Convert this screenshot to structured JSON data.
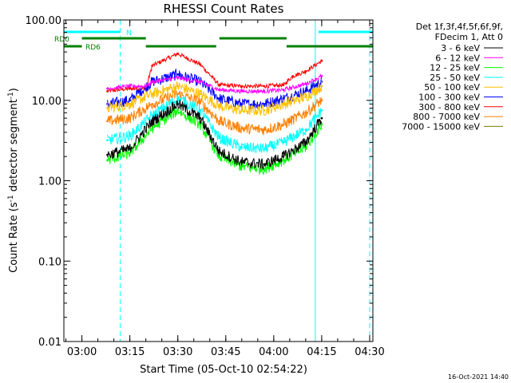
{
  "chart_data": {
    "type": "line",
    "title": "RHESSI Count Rates",
    "xlabel": "Start Time (05-Oct-10 02:54:22)",
    "ylabel": "Count Rate (s⁻¹ detector segment⁻¹)",
    "ylabel_parts": [
      "Count Rate (s",
      "-1",
      " detector segment",
      "-1",
      ")"
    ],
    "y_scale": "log",
    "ylim": [
      0.01,
      100
    ],
    "xlim": [
      "02:54:22",
      "04:31:00"
    ],
    "x_ticks": [
      "03:00",
      "03:15",
      "03:30",
      "03:45",
      "04:00",
      "04:15",
      "04:30"
    ],
    "y_ticks": [
      "0.01",
      "0.10",
      "1.00",
      "10.00",
      "100.00"
    ],
    "legend_header": [
      "Det 1f,3f,4f,5f,6f,9f,",
      "FDecim 1, Att 0"
    ],
    "series": [
      {
        "name": "3 - 6 keV",
        "color": "#000000",
        "x": [
          "03:08",
          "03:15",
          "03:22",
          "03:30",
          "03:37",
          "03:43",
          "03:50",
          "03:57",
          "04:03",
          "04:10",
          "04:15"
        ],
        "values": [
          2.1,
          2.5,
          5.5,
          9.0,
          6.0,
          2.3,
          1.7,
          1.6,
          2.0,
          3.0,
          6.0
        ]
      },
      {
        "name": "6 - 12 keV",
        "color": "#ff00ff",
        "x": [
          "03:08",
          "03:15",
          "03:20",
          "03:22",
          "03:30",
          "03:37",
          "03:43",
          "03:50",
          "03:57",
          "04:03",
          "04:10",
          "04:15"
        ],
        "values": [
          14,
          15,
          15,
          17,
          19,
          17,
          13.5,
          13,
          13,
          13.5,
          16,
          20
        ]
      },
      {
        "name": "12 - 25 keV",
        "color": "#00ff00",
        "x": [
          "03:08",
          "03:15",
          "03:22",
          "03:30",
          "03:37",
          "03:43",
          "03:50",
          "03:57",
          "04:03",
          "04:10",
          "04:15"
        ],
        "values": [
          1.8,
          2.2,
          4.5,
          7.5,
          5.0,
          2.0,
          1.5,
          1.4,
          1.8,
          2.6,
          5.0
        ]
      },
      {
        "name": "25 - 50 keV",
        "color": "#00ffff",
        "x": [
          "03:08",
          "03:15",
          "03:22",
          "03:30",
          "03:37",
          "03:43",
          "03:50",
          "03:57",
          "04:03",
          "04:10",
          "04:15"
        ],
        "values": [
          3.2,
          3.6,
          6.5,
          10.5,
          7.5,
          3.4,
          2.6,
          2.5,
          3.0,
          4.3,
          7.5
        ]
      },
      {
        "name": "50 - 100 keV",
        "color": "#ffc000",
        "x": [
          "03:08",
          "03:15",
          "03:22",
          "03:30",
          "03:37",
          "03:43",
          "03:50",
          "03:57",
          "04:03",
          "04:10",
          "04:15"
        ],
        "values": [
          8,
          9,
          12,
          15,
          12,
          8.5,
          7.5,
          7.5,
          9,
          11,
          15
        ]
      },
      {
        "name": "100 - 300 keV",
        "color": "#0000ff",
        "x": [
          "03:08",
          "03:15",
          "03:22",
          "03:30",
          "03:37",
          "03:43",
          "03:50",
          "03:57",
          "04:03",
          "04:10",
          "04:15"
        ],
        "values": [
          9,
          10,
          17,
          21,
          17,
          10.5,
          9,
          9,
          10.5,
          13,
          17
        ]
      },
      {
        "name": "300 - 800 keV",
        "color": "#ff0000",
        "x": [
          "03:08",
          "03:15",
          "03:20",
          "03:22",
          "03:30",
          "03:37",
          "03:43",
          "03:50",
          "03:57",
          "04:03",
          "04:06",
          "04:10",
          "04:15"
        ],
        "values": [
          13,
          14,
          14,
          27,
          38,
          28,
          15.5,
          15,
          15,
          15.5,
          20,
          23,
          31
        ]
      },
      {
        "name": "800 - 7000 keV",
        "color": "#ff8000",
        "x": [
          "03:08",
          "03:15",
          "03:22",
          "03:30",
          "03:37",
          "03:43",
          "03:50",
          "03:57",
          "04:03",
          "04:10",
          "04:15"
        ],
        "values": [
          5.5,
          6,
          9,
          12,
          9.5,
          5.5,
          4.5,
          4.3,
          5,
          7,
          10
        ]
      },
      {
        "name": "7000 - 15000 keV",
        "color": "#808000",
        "x": [],
        "values": []
      }
    ],
    "flags": [
      {
        "name": "N",
        "color": "#00ffff",
        "spans": [
          [
            "02:54",
            "03:12"
          ],
          [
            "04:14",
            "04:31"
          ]
        ]
      },
      {
        "name": "RD0",
        "color": "#008000",
        "spans": [
          [
            "03:00",
            "03:20"
          ],
          [
            "03:43",
            "04:04"
          ]
        ]
      },
      {
        "name": "RD6",
        "color": "#008000",
        "spans": [
          [
            "02:54",
            "03:00"
          ],
          [
            "03:20",
            "03:42"
          ],
          [
            "04:04",
            "04:31"
          ]
        ]
      }
    ],
    "vlines": [
      {
        "x": "02:54:22",
        "color": "#00ffff",
        "style": "solid"
      },
      {
        "x": "03:12",
        "color": "#00ffff",
        "style": "dashed"
      },
      {
        "x": "04:13",
        "color": "#00ffff",
        "style": "solid"
      },
      {
        "x": "04:30",
        "color": "#00ffff",
        "style": "dashed"
      }
    ],
    "grid": false,
    "legend_position": "right"
  },
  "footer": {
    "timestamp": "16-Oct-2021 14:40"
  }
}
